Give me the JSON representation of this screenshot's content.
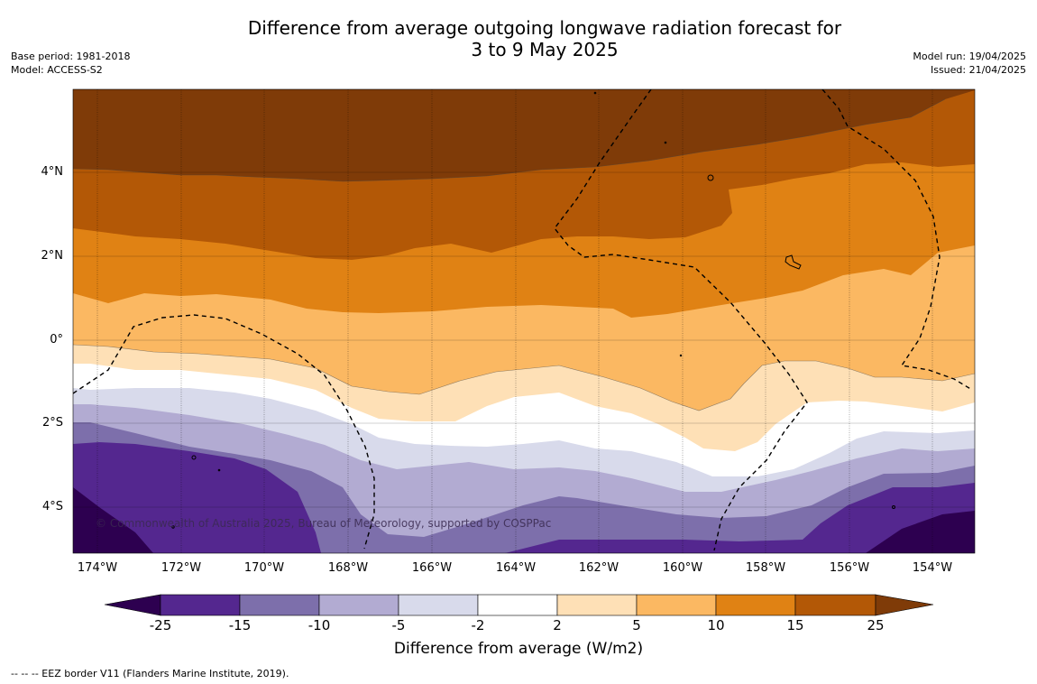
{
  "title_line1": "Difference from average outgoing longwave radiation forecast for",
  "title_line2": "3 to 9 May 2025",
  "meta_left": [
    "Base period: 1981-2018",
    "Model: ACCESS-S2"
  ],
  "meta_right": [
    "Model run: 19/04/2025",
    "Issued: 21/04/2025"
  ],
  "copyright": "© Commonwealth of Australia 2025, Bureau of Meteorology, supported by COSPPac",
  "lat_labels": [
    "4°N",
    "2°N",
    "0°",
    "2°S",
    "4°S"
  ],
  "lon_labels": [
    "174°W",
    "172°W",
    "170°W",
    "168°W",
    "166°W",
    "164°W",
    "162°W",
    "160°W",
    "158°W",
    "156°W",
    "154°W"
  ],
  "colorbar": {
    "title": "Difference from average (W/m2)",
    "labels": [
      "-25",
      "-15",
      "-10",
      "-5",
      "-2",
      "2",
      "5",
      "10",
      "15",
      "25"
    ],
    "colors": {
      "lt_neg25": "#2d0050",
      "neg25_neg15": "#54278f",
      "neg15_neg10": "#7d6fab",
      "neg10_neg5": "#b2abd2",
      "neg5_neg2": "#d8daeb",
      "neg2_2": "#ffffff",
      "p2_5": "#fee0b6",
      "p5_10": "#fbb862",
      "p10_15": "#e08214",
      "p15_25": "#b35806",
      "gt_25": "#7f3b08"
    }
  },
  "footer": "--  --  -- EEZ border V11 (Flanders Marine Institute, 2019)."
}
